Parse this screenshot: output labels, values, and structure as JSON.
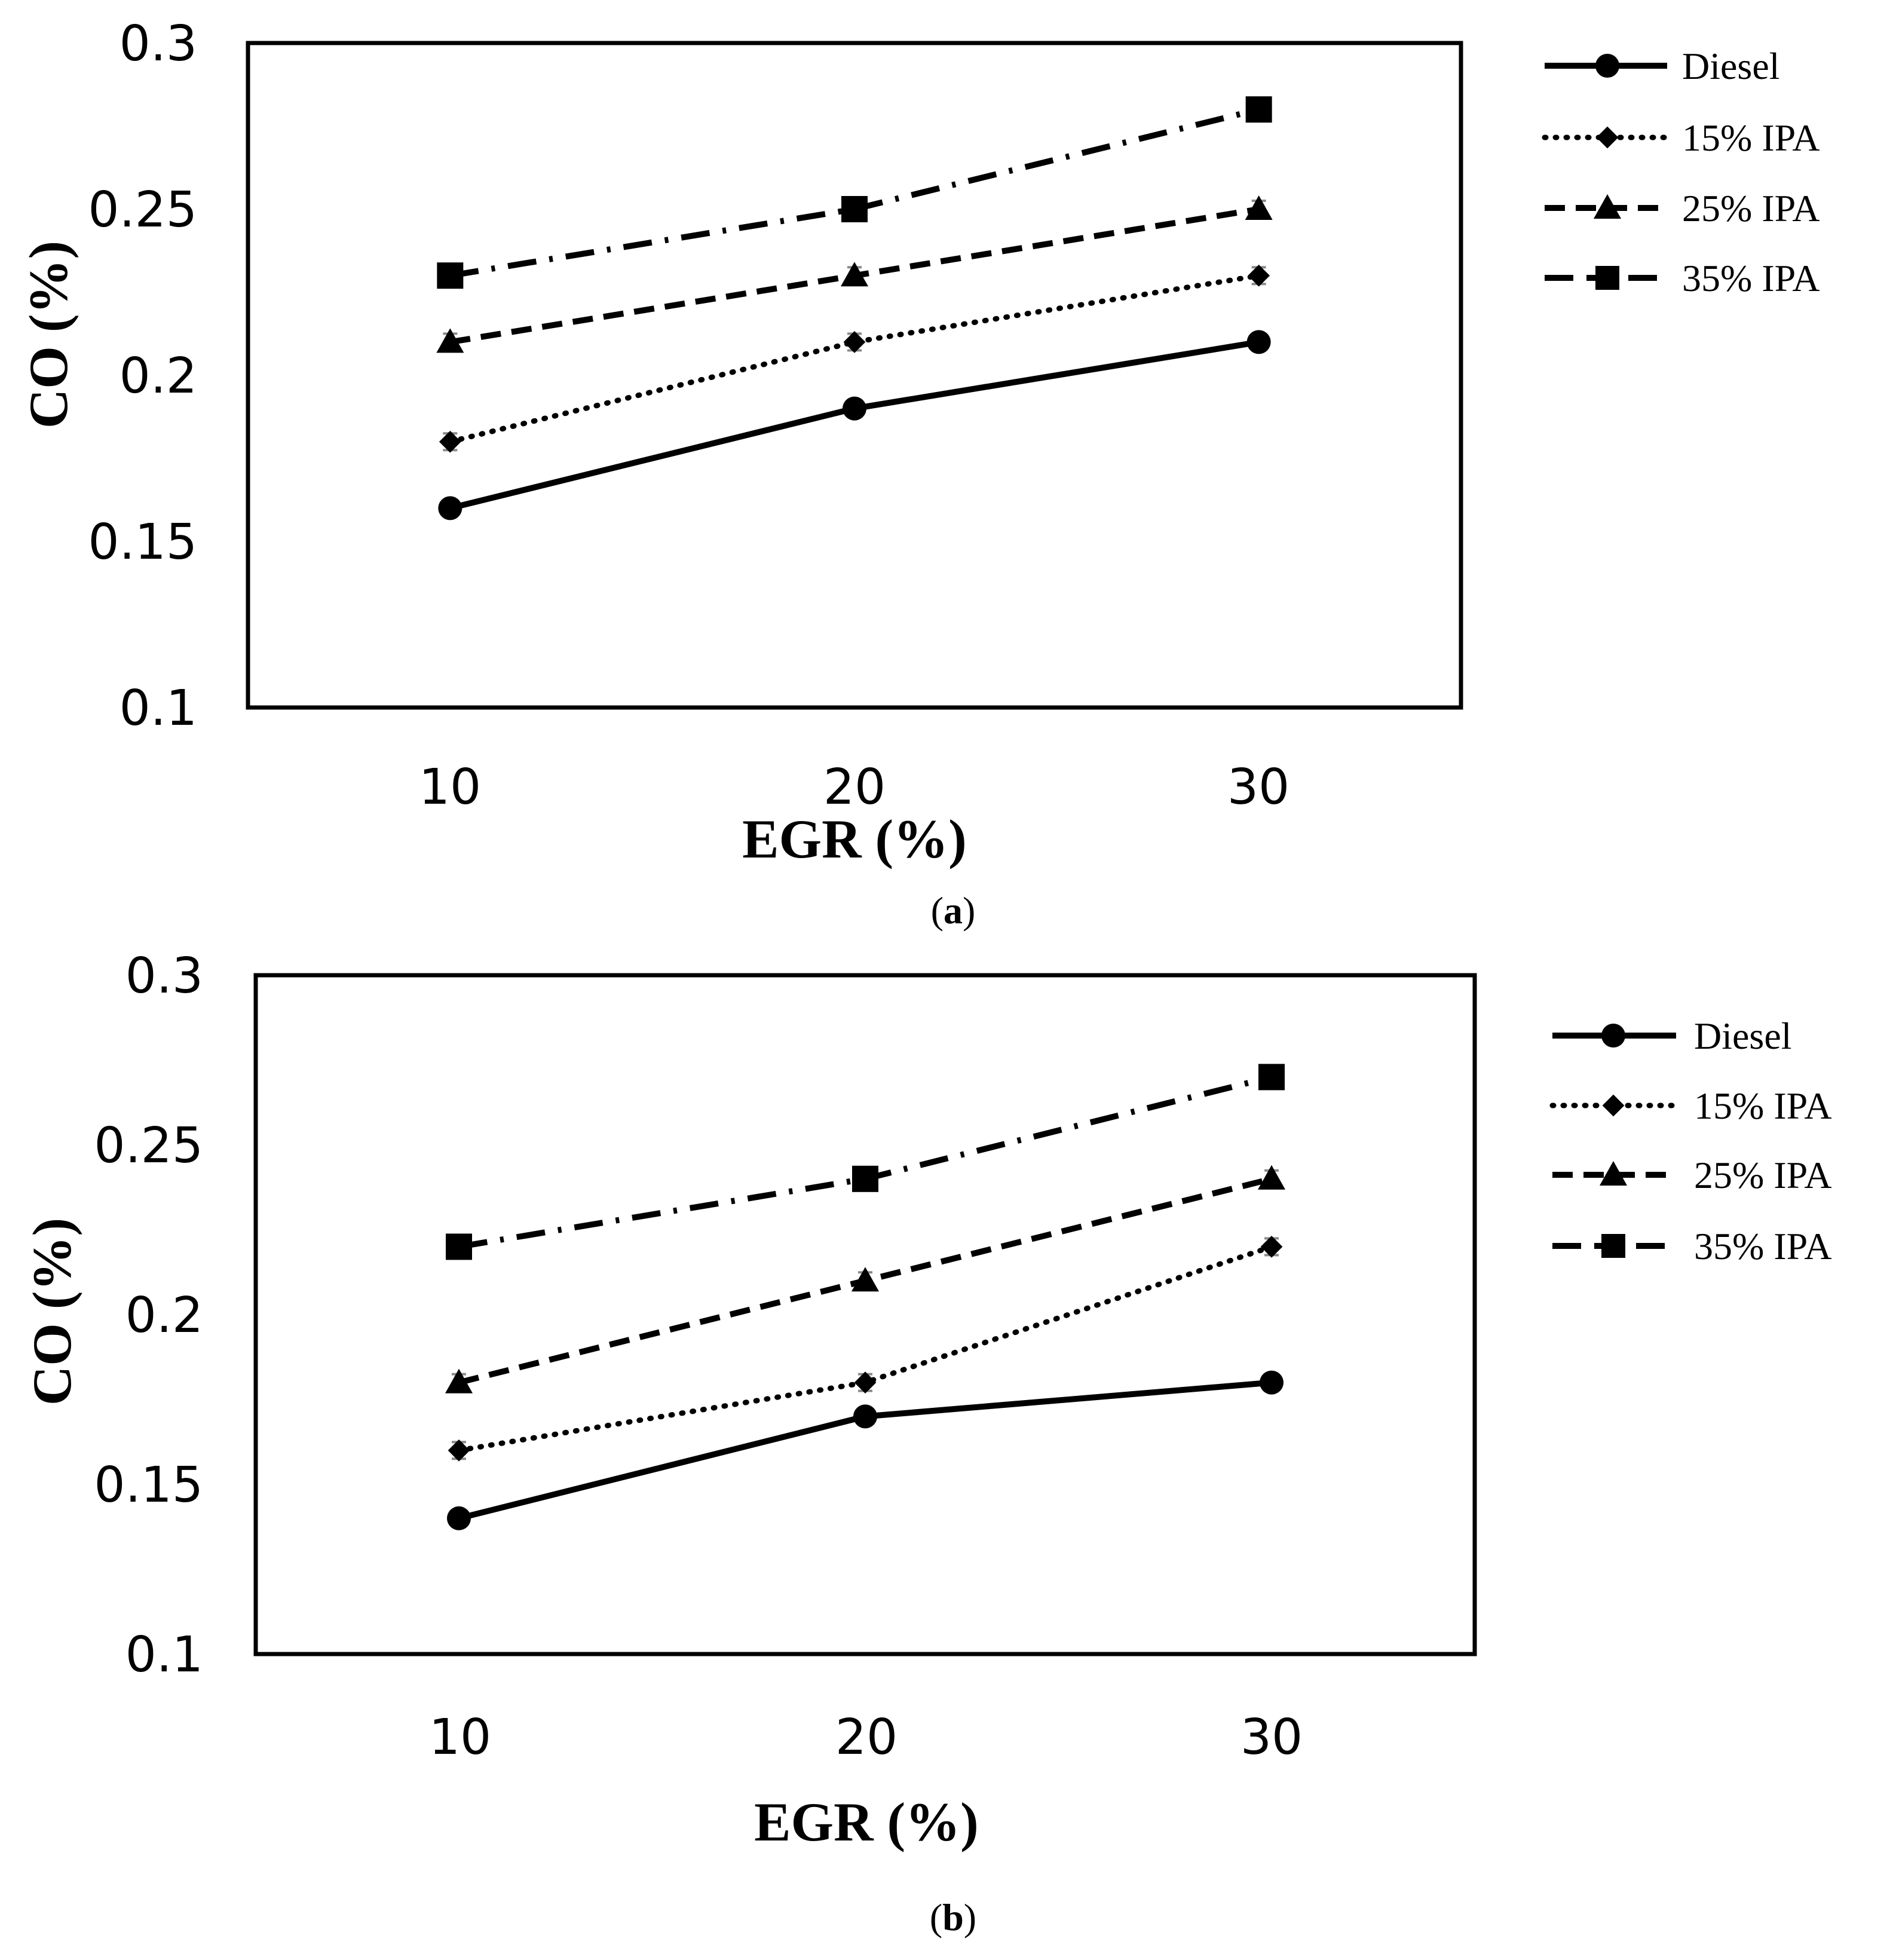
{
  "chart_data": [
    {
      "type": "line",
      "panel": "a",
      "caption_open": "(",
      "caption_letter": "a",
      "caption_close": ")",
      "xlabel": "EGR (%)",
      "ylabel": "CO (%)",
      "categories": [
        "10",
        "20",
        "30"
      ],
      "x": [
        10,
        20,
        30
      ],
      "xlim": [
        5,
        35
      ],
      "ylim": [
        0.1,
        0.3
      ],
      "yticks": [
        "0.1",
        "0.15",
        "0.2",
        "0.25",
        "0.3"
      ],
      "legend_position": "right",
      "grid": false,
      "series": [
        {
          "name": "Diesel",
          "values": [
            0.16,
            0.19,
            0.21
          ],
          "marker": "circle",
          "dash": "solid"
        },
        {
          "name": "15% IPA",
          "values": [
            0.18,
            0.21,
            0.23
          ],
          "marker": "diamond",
          "dash": "dotted"
        },
        {
          "name": "25% IPA",
          "values": [
            0.21,
            0.23,
            0.25
          ],
          "marker": "triangle",
          "dash": "dashed"
        },
        {
          "name": "35% IPA",
          "values": [
            0.23,
            0.25,
            0.28
          ],
          "marker": "square",
          "dash": "dashdot"
        }
      ]
    },
    {
      "type": "line",
      "panel": "b",
      "caption_open": "(",
      "caption_letter": "b",
      "caption_close": ")",
      "xlabel": "EGR (%)",
      "ylabel": "CO (%)",
      "categories": [
        "10",
        "20",
        "30"
      ],
      "x": [
        10,
        20,
        30
      ],
      "xlim": [
        5,
        35
      ],
      "ylim": [
        0.1,
        0.3
      ],
      "yticks": [
        "0.1",
        "0.15",
        "0.2",
        "0.25",
        "0.3"
      ],
      "legend_position": "right",
      "grid": false,
      "series": [
        {
          "name": "Diesel",
          "values": [
            0.14,
            0.17,
            0.18
          ],
          "marker": "circle",
          "dash": "solid"
        },
        {
          "name": "15% IPA",
          "values": [
            0.16,
            0.18,
            0.22
          ],
          "marker": "diamond",
          "dash": "dotted"
        },
        {
          "name": "25% IPA",
          "values": [
            0.18,
            0.21,
            0.24
          ],
          "marker": "triangle",
          "dash": "dashed"
        },
        {
          "name": "35% IPA",
          "values": [
            0.22,
            0.24,
            0.27
          ],
          "marker": "square",
          "dash": "dashdot"
        }
      ]
    }
  ]
}
